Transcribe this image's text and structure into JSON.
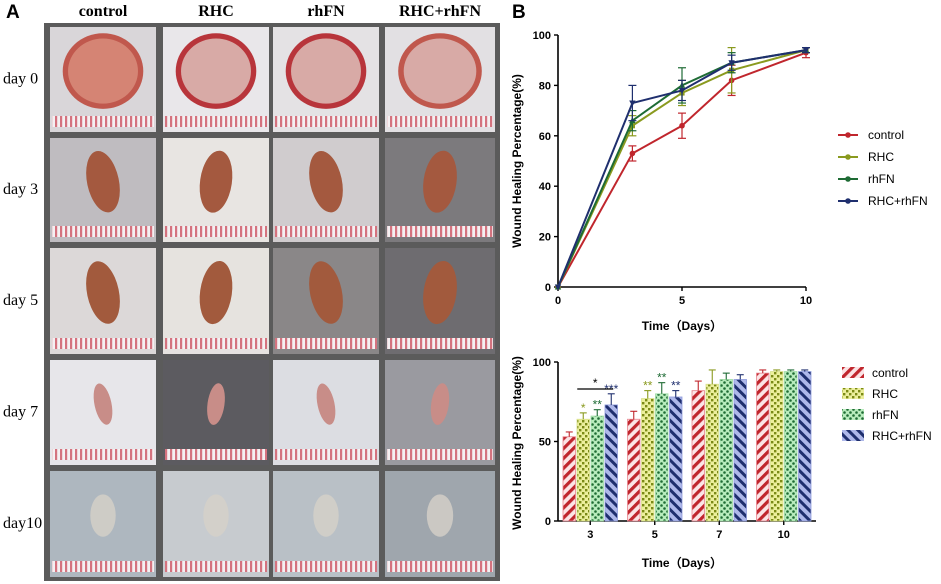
{
  "panel_a": {
    "label": "A",
    "columns": [
      "control",
      "RHC",
      "rhFN",
      "RHC+rhFN"
    ],
    "rows": [
      "day 0",
      "day 3",
      "day 5",
      "day 7",
      "day10"
    ]
  },
  "panel_b": {
    "label": "B"
  },
  "colors": {
    "control": "#c0262d",
    "RHC": "#8a9a1f",
    "rhFN": "#1e6b34",
    "RHC+rhFN": "#1f2f6e",
    "bar_control": "#e8858f",
    "bar_RHC": "#d8e08a",
    "bar_rhFN": "#9fdda5",
    "bar_RHC+rhFN": "#8f9cdc"
  },
  "chart_data": [
    {
      "type": "line",
      "title": "",
      "xlabel": "Time（Days）",
      "ylabel": "Wound Healing Percentage(%)",
      "xlim": [
        0,
        10
      ],
      "ylim": [
        0,
        100
      ],
      "xticks": [
        "0",
        "5",
        "10"
      ],
      "yticks": [
        "0",
        "20",
        "40",
        "60",
        "80",
        "100"
      ],
      "x": [
        0,
        3,
        5,
        7,
        10
      ],
      "legend_position": "right",
      "series": [
        {
          "name": "control",
          "values": [
            0,
            53,
            64,
            82,
            93
          ],
          "errors": [
            0,
            3,
            5,
            6,
            2
          ]
        },
        {
          "name": "RHC",
          "values": [
            0,
            64,
            77,
            86,
            94
          ],
          "errors": [
            0,
            4,
            5,
            9,
            1
          ]
        },
        {
          "name": "rhFN",
          "values": [
            0,
            66,
            80,
            89,
            94
          ],
          "errors": [
            0,
            4,
            7,
            4,
            1
          ]
        },
        {
          "name": "RHC+rhFN",
          "values": [
            0,
            73,
            78,
            89,
            94
          ],
          "errors": [
            0,
            7,
            4,
            3,
            1
          ]
        }
      ]
    },
    {
      "type": "bar",
      "title": "",
      "xlabel": "Time（Days）",
      "ylabel": "Wound Healing Percentage(%)",
      "ylim": [
        0,
        100
      ],
      "yticks": [
        "0",
        "50",
        "100"
      ],
      "categories": [
        "3",
        "5",
        "7",
        "10"
      ],
      "legend_position": "right",
      "series": [
        {
          "name": "control",
          "values": [
            53,
            64,
            82,
            93
          ],
          "errors": [
            3,
            5,
            6,
            2
          ]
        },
        {
          "name": "RHC",
          "values": [
            64,
            77,
            86,
            94
          ],
          "errors": [
            4,
            5,
            9,
            1
          ]
        },
        {
          "name": "rhFN",
          "values": [
            66,
            80,
            89,
            94
          ],
          "errors": [
            4,
            7,
            4,
            1
          ]
        },
        {
          "name": "RHC+rhFN",
          "values": [
            73,
            78,
            89,
            94
          ],
          "errors": [
            7,
            4,
            3,
            1
          ]
        }
      ],
      "annotations": [
        {
          "category": "3",
          "series": "RHC",
          "text": "*"
        },
        {
          "category": "3",
          "series": "rhFN",
          "text": "**"
        },
        {
          "category": "3",
          "series": "RHC+rhFN",
          "text": "***"
        },
        {
          "category": "3",
          "bracket": [
            "RHC",
            "RHC+rhFN"
          ],
          "text": "*"
        },
        {
          "category": "5",
          "series": "RHC",
          "text": "**"
        },
        {
          "category": "5",
          "series": "rhFN",
          "text": "**"
        },
        {
          "category": "5",
          "series": "RHC+rhFN",
          "text": "**"
        }
      ]
    }
  ]
}
